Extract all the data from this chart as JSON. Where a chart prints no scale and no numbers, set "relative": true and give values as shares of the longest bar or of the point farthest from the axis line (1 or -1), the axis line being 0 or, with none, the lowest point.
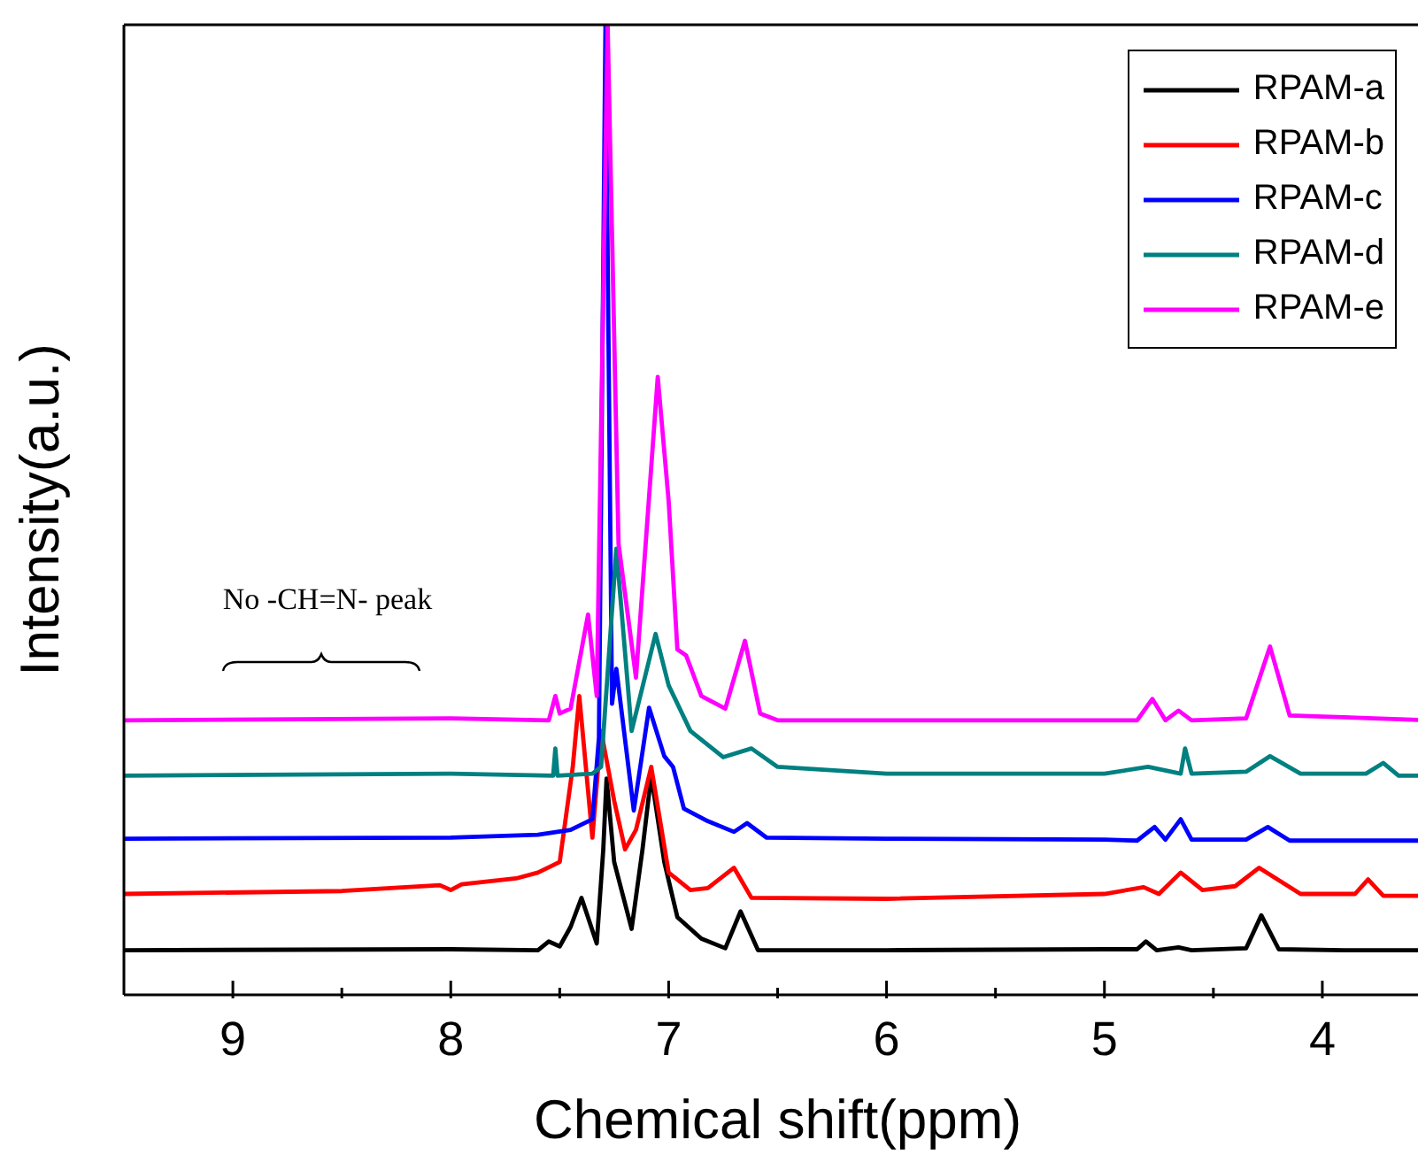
{
  "chart_data": {
    "type": "line",
    "xlabel": "Chemical shift(ppm)",
    "ylabel": "Intensity(a.u.)",
    "relative": true,
    "xlim": [
      9.5,
      3.5
    ],
    "xticks": [
      9,
      {
        "value": 8.5,
        "label": null
      },
      8,
      {
        "value": 7.5,
        "label": null
      },
      7,
      {
        "value": 6.5,
        "label": null
      },
      6,
      {
        "value": 5.5,
        "label": null
      },
      5,
      {
        "value": 4.5,
        "label": null
      },
      4
    ],
    "grid": false,
    "legend": "top right",
    "marker": "none",
    "line_style": "solid",
    "annotations": [
      "No -CH=N- peak"
    ],
    "series": [
      {
        "name": "RPAM-a",
        "color": "#000000",
        "x": [
          9.5,
          8.0,
          7.6,
          7.55,
          7.5,
          7.45,
          7.4,
          7.33,
          7.3,
          7.285,
          7.25,
          7.17,
          7.12,
          7.08,
          7.02,
          6.96,
          6.85,
          6.74,
          6.67,
          6.59,
          6.0,
          5.0,
          4.85,
          4.81,
          4.76,
          4.66,
          4.6,
          4.35,
          4.28,
          4.2,
          3.9,
          3.5
        ],
        "values": [
          0.046,
          0.047,
          0.046,
          0.055,
          0.05,
          0.07,
          0.1,
          0.053,
          0.15,
          0.223,
          0.137,
          0.068,
          0.15,
          0.226,
          0.137,
          0.08,
          0.058,
          0.048,
          0.086,
          0.046,
          0.046,
          0.047,
          0.047,
          0.055,
          0.046,
          0.049,
          0.046,
          0.048,
          0.082,
          0.047,
          0.046,
          0.046
        ]
      },
      {
        "name": "RPAM-b",
        "color": "#ff0000",
        "x": [
          9.5,
          8.5,
          8.05,
          8.0,
          7.95,
          7.7,
          7.6,
          7.5,
          7.44,
          7.41,
          7.35,
          7.31,
          7.25,
          7.2,
          7.15,
          7.08,
          7.0,
          6.9,
          6.82,
          6.7,
          6.62,
          6.0,
          5.0,
          4.82,
          4.75,
          4.65,
          4.55,
          4.4,
          4.29,
          4.1,
          3.85,
          3.79,
          3.72,
          3.5
        ],
        "values": [
          0.104,
          0.107,
          0.113,
          0.108,
          0.114,
          0.12,
          0.126,
          0.137,
          0.235,
          0.308,
          0.162,
          0.272,
          0.2,
          0.15,
          0.17,
          0.235,
          0.126,
          0.108,
          0.11,
          0.131,
          0.1,
          0.099,
          0.104,
          0.111,
          0.104,
          0.126,
          0.108,
          0.112,
          0.131,
          0.104,
          0.104,
          0.119,
          0.102,
          0.102
        ]
      },
      {
        "name": "RPAM-c",
        "color": "#0000ff",
        "x": [
          9.5,
          8.0,
          7.6,
          7.45,
          7.35,
          7.32,
          7.29,
          7.26,
          7.24,
          7.16,
          7.09,
          7.02,
          6.98,
          6.93,
          6.82,
          6.7,
          6.64,
          6.55,
          6.0,
          5.0,
          4.85,
          4.77,
          4.72,
          4.65,
          4.6,
          4.35,
          4.25,
          4.15,
          3.5
        ],
        "values": [
          0.161,
          0.162,
          0.165,
          0.17,
          0.181,
          0.265,
          1,
          0.3,
          0.336,
          0.19,
          0.296,
          0.246,
          0.235,
          0.192,
          0.179,
          0.168,
          0.177,
          0.162,
          0.161,
          0.16,
          0.159,
          0.173,
          0.16,
          0.181,
          0.16,
          0.16,
          0.173,
          0.159,
          0.159
        ]
      },
      {
        "name": "RPAM-d",
        "color": "#008080",
        "x": [
          9.5,
          8.0,
          7.53,
          7.52,
          7.51,
          7.35,
          7.31,
          7.24,
          7.17,
          7.06,
          7.0,
          6.9,
          6.75,
          6.62,
          6.5,
          6.0,
          5.0,
          4.8,
          4.65,
          4.63,
          4.6,
          4.35,
          4.24,
          4.1,
          3.8,
          3.72,
          3.65,
          3.5
        ],
        "values": [
          0.226,
          0.228,
          0.226,
          0.254,
          0.226,
          0.228,
          0.235,
          0.46,
          0.272,
          0.372,
          0.319,
          0.272,
          0.245,
          0.254,
          0.235,
          0.228,
          0.228,
          0.235,
          0.228,
          0.254,
          0.228,
          0.23,
          0.246,
          0.228,
          0.228,
          0.239,
          0.226,
          0.226
        ]
      },
      {
        "name": "RPAM-e",
        "color": "#ff00ff",
        "x": [
          9.5,
          8.0,
          7.55,
          7.52,
          7.5,
          7.45,
          7.37,
          7.33,
          7.28,
          7.23,
          7.15,
          7.05,
          7.0,
          6.96,
          6.92,
          6.85,
          6.74,
          6.65,
          6.58,
          6.5,
          6.0,
          5.0,
          4.85,
          4.78,
          4.72,
          4.66,
          4.6,
          4.35,
          4.24,
          4.15,
          3.5
        ],
        "values": [
          0.283,
          0.285,
          0.283,
          0.308,
          0.29,
          0.295,
          0.392,
          0.308,
          1,
          0.465,
          0.327,
          0.637,
          0.509,
          0.356,
          0.35,
          0.308,
          0.295,
          0.365,
          0.29,
          0.283,
          0.283,
          0.283,
          0.283,
          0.305,
          0.283,
          0.293,
          0.283,
          0.285,
          0.359,
          0.288,
          0.283
        ]
      }
    ]
  }
}
